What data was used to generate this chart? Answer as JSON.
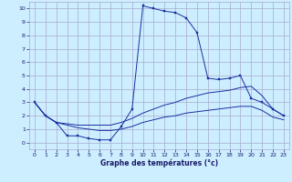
{
  "xlabel": "Graphe des températures (°c)",
  "background_color": "#cceeff",
  "grid_color": "#aaaacc",
  "line_color": "#1a2fa0",
  "ylim": [
    -0.5,
    10.5
  ],
  "xlim": [
    -0.5,
    23.5
  ],
  "yticks": [
    0,
    1,
    2,
    3,
    4,
    5,
    6,
    7,
    8,
    9,
    10
  ],
  "xticks": [
    0,
    1,
    2,
    3,
    4,
    5,
    6,
    7,
    8,
    9,
    10,
    11,
    12,
    13,
    14,
    15,
    16,
    17,
    18,
    19,
    20,
    21,
    22,
    23
  ],
  "line1_x": [
    0,
    1,
    2,
    3,
    4,
    5,
    6,
    7,
    8,
    9,
    10,
    11,
    12,
    13,
    14,
    15,
    16,
    17,
    18,
    19,
    20,
    21,
    22,
    23
  ],
  "line1_y": [
    3.0,
    2.0,
    1.5,
    0.5,
    0.5,
    0.3,
    0.2,
    0.2,
    1.2,
    2.5,
    10.2,
    10.0,
    9.8,
    9.7,
    9.3,
    8.2,
    4.8,
    4.7,
    4.8,
    5.0,
    3.3,
    3.0,
    2.5,
    2.0
  ],
  "line2_x": [
    0,
    1,
    2,
    3,
    4,
    5,
    6,
    7,
    8,
    9,
    10,
    11,
    12,
    13,
    14,
    15,
    16,
    17,
    18,
    19,
    20,
    21,
    22,
    23
  ],
  "line2_y": [
    3.0,
    2.0,
    1.5,
    1.4,
    1.3,
    1.3,
    1.3,
    1.3,
    1.5,
    1.8,
    2.2,
    2.5,
    2.8,
    3.0,
    3.3,
    3.5,
    3.7,
    3.8,
    3.9,
    4.1,
    4.2,
    3.5,
    2.5,
    2.0
  ],
  "line3_x": [
    0,
    1,
    2,
    3,
    4,
    5,
    6,
    7,
    8,
    9,
    10,
    11,
    12,
    13,
    14,
    15,
    16,
    17,
    18,
    19,
    20,
    21,
    22,
    23
  ],
  "line3_y": [
    3.0,
    2.0,
    1.5,
    1.3,
    1.1,
    1.0,
    0.9,
    0.9,
    1.0,
    1.2,
    1.5,
    1.7,
    1.9,
    2.0,
    2.2,
    2.3,
    2.4,
    2.5,
    2.6,
    2.7,
    2.7,
    2.4,
    1.9,
    1.7
  ]
}
